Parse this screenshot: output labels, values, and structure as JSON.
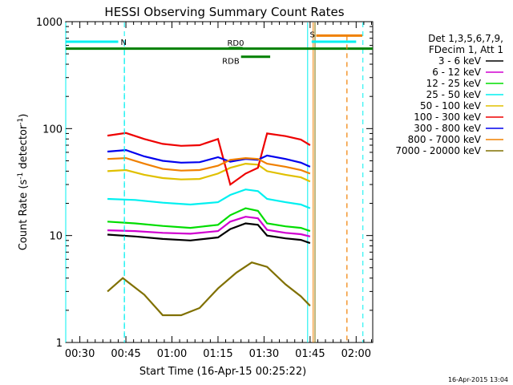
{
  "chart_data": {
    "type": "line",
    "title": "HESSI Observing Summary Count Rates",
    "xlabel": "Start Time (16-Apr-15 00:25:22)",
    "ylabel_main": "Count Rate (s",
    "ylabel_sup1": "-1",
    "ylabel_mid": " detector",
    "ylabel_sup2": "-1",
    "ylabel_end": ")",
    "y_scale": "log",
    "xlim_min": [
      25.4,
      125.4
    ],
    "ylim": [
      1,
      1000
    ],
    "x_ticks": [
      {
        "label": "00:30",
        "min": 30
      },
      {
        "label": "00:45",
        "min": 45
      },
      {
        "label": "01:00",
        "min": 60
      },
      {
        "label": "01:15",
        "min": 75
      },
      {
        "label": "01:30",
        "min": 90
      },
      {
        "label": "01:45",
        "min": 105
      },
      {
        "label": "02:00",
        "min": 120
      }
    ],
    "y_ticks": [
      {
        "label": "1",
        "value": 1
      },
      {
        "label": "10",
        "value": 10
      },
      {
        "label": "100",
        "value": 100
      },
      {
        "label": "1000",
        "value": 1000
      }
    ],
    "legend_header": [
      "Det 1,3,5,6,7,9,",
      "FDecim 1, Att 1"
    ],
    "legend_placement": "right",
    "series": [
      {
        "name": "3 - 6 keV",
        "color": "#000000",
        "values": [
          [
            39,
            10.2
          ],
          [
            48,
            9.8
          ],
          [
            57,
            9.3
          ],
          [
            66,
            9.0
          ],
          [
            75,
            9.6
          ],
          [
            79,
            11.5
          ],
          [
            84,
            13
          ],
          [
            88,
            12.6
          ],
          [
            91,
            10
          ],
          [
            97,
            9.4
          ],
          [
            102,
            9.1
          ],
          [
            105,
            8.5
          ]
        ]
      },
      {
        "name": "6 - 12 keV",
        "color": "#d000d0",
        "values": [
          [
            39,
            11.2
          ],
          [
            48,
            11
          ],
          [
            57,
            10.6
          ],
          [
            66,
            10.4
          ],
          [
            75,
            11
          ],
          [
            79,
            13.5
          ],
          [
            84,
            15
          ],
          [
            88,
            14.5
          ],
          [
            91,
            11.3
          ],
          [
            97,
            10.6
          ],
          [
            102,
            10.3
          ],
          [
            105,
            9.8
          ]
        ]
      },
      {
        "name": "12 - 25 keV",
        "color": "#00dd00",
        "values": [
          [
            39,
            13.5
          ],
          [
            48,
            13
          ],
          [
            57,
            12.3
          ],
          [
            66,
            11.8
          ],
          [
            75,
            12.6
          ],
          [
            79,
            15.5
          ],
          [
            84,
            18
          ],
          [
            88,
            17
          ],
          [
            91,
            13
          ],
          [
            97,
            12.2
          ],
          [
            102,
            11.8
          ],
          [
            105,
            11
          ]
        ]
      },
      {
        "name": "25 - 50 keV",
        "color": "#00f0f0",
        "values": [
          [
            39,
            22
          ],
          [
            48,
            21.5
          ],
          [
            57,
            20.3
          ],
          [
            66,
            19.5
          ],
          [
            75,
            20.5
          ],
          [
            79,
            24
          ],
          [
            84,
            27
          ],
          [
            88,
            26
          ],
          [
            91,
            22
          ],
          [
            97,
            20.5
          ],
          [
            102,
            19.5
          ],
          [
            105,
            18
          ]
        ]
      },
      {
        "name": "50 - 100 keV",
        "color": "#e0c000",
        "values": [
          [
            39,
            40
          ],
          [
            45,
            41
          ],
          [
            51,
            37
          ],
          [
            57,
            34.5
          ],
          [
            63,
            33.5
          ],
          [
            69,
            33.8
          ],
          [
            75,
            38
          ],
          [
            79,
            43
          ],
          [
            84,
            47
          ],
          [
            88,
            46
          ],
          [
            91,
            40
          ],
          [
            97,
            37
          ],
          [
            102,
            35
          ],
          [
            105,
            32
          ]
        ]
      },
      {
        "name": "100 - 300 keV",
        "color": "#ee0000",
        "values": [
          [
            39,
            86
          ],
          [
            45,
            91
          ],
          [
            51,
            80
          ],
          [
            57,
            72
          ],
          [
            63,
            69
          ],
          [
            69,
            70
          ],
          [
            75,
            80
          ],
          [
            79,
            30
          ],
          [
            84,
            38
          ],
          [
            88,
            43
          ],
          [
            91,
            90
          ],
          [
            97,
            85
          ],
          [
            102,
            79
          ],
          [
            105,
            70
          ]
        ]
      },
      {
        "name": "300 - 800 keV",
        "color": "#0000ee",
        "values": [
          [
            39,
            61
          ],
          [
            45,
            63
          ],
          [
            51,
            55
          ],
          [
            57,
            50
          ],
          [
            63,
            48
          ],
          [
            69,
            48.5
          ],
          [
            75,
            54
          ],
          [
            79,
            49
          ],
          [
            84,
            52
          ],
          [
            88,
            51
          ],
          [
            91,
            56
          ],
          [
            97,
            52
          ],
          [
            102,
            48
          ],
          [
            105,
            44
          ]
        ]
      },
      {
        "name": "800 - 7000 keV",
        "color": "#f08000",
        "values": [
          [
            39,
            52
          ],
          [
            45,
            53
          ],
          [
            51,
            47
          ],
          [
            57,
            42
          ],
          [
            63,
            40.5
          ],
          [
            69,
            41
          ],
          [
            75,
            45
          ],
          [
            79,
            51
          ],
          [
            84,
            53
          ],
          [
            88,
            52
          ],
          [
            91,
            47
          ],
          [
            97,
            44
          ],
          [
            102,
            41
          ],
          [
            105,
            38
          ]
        ]
      },
      {
        "name": "7000 - 20000 keV",
        "color": "#807000",
        "values": [
          [
            39,
            3.0
          ],
          [
            44,
            4.0
          ],
          [
            51,
            2.8
          ],
          [
            57,
            1.8
          ],
          [
            63,
            1.8
          ],
          [
            69,
            2.1
          ],
          [
            75,
            3.2
          ],
          [
            81,
            4.5
          ],
          [
            86,
            5.6
          ],
          [
            91,
            5.1
          ],
          [
            97,
            3.5
          ],
          [
            102,
            2.7
          ],
          [
            105,
            2.2
          ]
        ]
      }
    ],
    "flag_bars": [
      {
        "color": "#00f0f0",
        "label": "N",
        "label_color": "#00f0f0",
        "y": 650,
        "x_start": 25.4,
        "x_end": 42.5,
        "dashed_x": 44.5,
        "gap_x": [
          105.5,
          120
        ]
      },
      {
        "color": "#f08000",
        "label": "S",
        "label_color": "#f08000",
        "y": 740,
        "x_start": 107,
        "x_end": 122,
        "dashed_x": 117
      }
    ],
    "rdb_bar": {
      "label": "RDB",
      "color": "#008000",
      "y": 470,
      "x": [
        82.5,
        92
      ]
    },
    "rd0_bar": {
      "label": "RD0",
      "color": "#008000",
      "y": 565,
      "x": [
        78.5,
        83
      ]
    },
    "green_line": {
      "color": "#008000",
      "y": 560,
      "x": [
        25.4,
        125.4
      ]
    },
    "vertical_markers": [
      {
        "x": 25.4,
        "color": "#00f0f0",
        "style": "solid"
      },
      {
        "x": 44.5,
        "color": "#00f0f0",
        "style": "dashed"
      },
      {
        "x": 104.2,
        "color": "#00f0f0",
        "style": "solid"
      },
      {
        "x": 106.0,
        "color": "#f08000",
        "style": "solid"
      },
      {
        "x": 106.6,
        "color": "#807000",
        "style": "solid"
      },
      {
        "x": 122.2,
        "color": "#00f0f0",
        "style": "dashed"
      }
    ],
    "footer_text": "16-Apr-2015 13:04"
  }
}
